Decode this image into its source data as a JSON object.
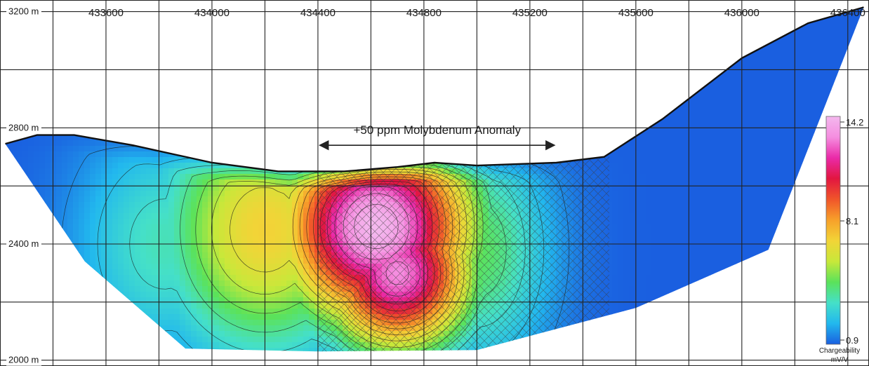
{
  "chart_data": {
    "type": "heatmap",
    "title": "",
    "xlabel": "",
    "ylabel": "",
    "x_ticks": [
      {
        "label": "433600",
        "value": 433600
      },
      {
        "label": "434000",
        "value": 434000
      },
      {
        "label": "434400",
        "value": 434400
      },
      {
        "label": "434800",
        "value": 434800
      },
      {
        "label": "435200",
        "value": 435200
      },
      {
        "label": "435600",
        "value": 435600
      },
      {
        "label": "436000",
        "value": 436000
      },
      {
        "label": "436400",
        "value": 436400
      }
    ],
    "y_ticks": [
      {
        "label": "3200 m",
        "value": 3200
      },
      {
        "label": "2800 m",
        "value": 2800
      },
      {
        "label": "2400 m",
        "value": 2400
      },
      {
        "label": "2000 m",
        "value": 2000
      }
    ],
    "xlim": [
      433200,
      436480
    ],
    "ylim": [
      1980,
      3240
    ],
    "grid": true,
    "terrain_profile": [
      {
        "x": 433220,
        "elev": 2745
      },
      {
        "x": 433340,
        "elev": 2775
      },
      {
        "x": 433480,
        "elev": 2775
      },
      {
        "x": 433700,
        "elev": 2740
      },
      {
        "x": 434000,
        "elev": 2680
      },
      {
        "x": 434250,
        "elev": 2650
      },
      {
        "x": 434500,
        "elev": 2650
      },
      {
        "x": 434700,
        "elev": 2665
      },
      {
        "x": 434840,
        "elev": 2680
      },
      {
        "x": 435000,
        "elev": 2670
      },
      {
        "x": 435300,
        "elev": 2680
      },
      {
        "x": 435480,
        "elev": 2700
      },
      {
        "x": 435700,
        "elev": 2830
      },
      {
        "x": 436000,
        "elev": 3040
      },
      {
        "x": 436250,
        "elev": 3160
      },
      {
        "x": 436460,
        "elev": 3215
      }
    ],
    "section_bottom": [
      {
        "x": 433220,
        "elev": 2745
      },
      {
        "x": 433520,
        "elev": 2340
      },
      {
        "x": 433900,
        "elev": 2040
      },
      {
        "x": 434400,
        "elev": 2030
      },
      {
        "x": 435000,
        "elev": 2035
      },
      {
        "x": 435600,
        "elev": 2180
      },
      {
        "x": 436100,
        "elev": 2380
      },
      {
        "x": 436460,
        "elev": 3215
      }
    ],
    "anomaly": {
      "label": "+50 ppm Molybdenum Anomaly",
      "x_from": 434400,
      "x_to": 435300,
      "arrow_elev": 2740
    },
    "hatched_zone": {
      "x_from": 434400,
      "x_to": 435500
    },
    "field_sources": [
      {
        "x": 434620,
        "elev": 2460,
        "value": 14.2,
        "spread_x": 360,
        "spread_y": 330
      },
      {
        "x": 434700,
        "elev": 2300,
        "value": 13.0,
        "spread_x": 280,
        "spread_y": 260
      },
      {
        "x": 434200,
        "elev": 2450,
        "value": 7.0,
        "spread_x": 380,
        "spread_y": 420
      },
      {
        "x": 433820,
        "elev": 2400,
        "value": 3.5,
        "spread_x": 320,
        "spread_y": 380
      },
      {
        "x": 435000,
        "elev": 2380,
        "value": 4.5,
        "spread_x": 260,
        "spread_y": 380
      }
    ],
    "background_value": 0.9,
    "colorbar": {
      "min": 0.9,
      "mid": 8.1,
      "max": 14.2,
      "tick_labels": [
        "14.2",
        "8.1",
        "0.9"
      ],
      "label": "Chargeability",
      "unit": "mV/V",
      "colors": [
        "#1a5fe0",
        "#22b8ee",
        "#45e0c8",
        "#5be25a",
        "#c8e83a",
        "#f2d437",
        "#f7a02a",
        "#f0552a",
        "#e21640",
        "#ea2aa8",
        "#f58ee0",
        "#f4b8ee"
      ]
    }
  }
}
